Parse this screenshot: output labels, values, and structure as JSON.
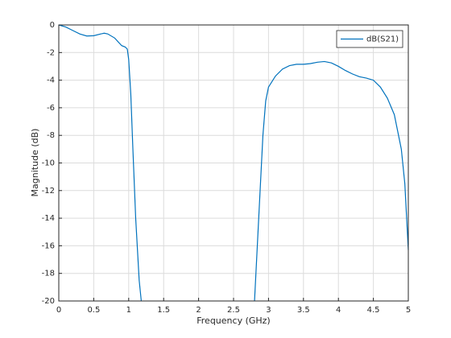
{
  "chart_data": {
    "type": "line",
    "x_label": "Frequency (GHz)",
    "y_label": "Magnitude (dB)",
    "x": [
      0,
      0.1,
      0.2,
      0.3,
      0.4,
      0.5,
      0.6,
      0.65,
      0.7,
      0.8,
      0.9,
      0.95,
      0.98,
      1.0,
      1.03,
      1.06,
      1.1,
      1.15,
      1.18,
      2.0,
      2.8,
      2.84,
      2.88,
      2.92,
      2.96,
      3.0,
      3.1,
      3.2,
      3.3,
      3.4,
      3.5,
      3.6,
      3.7,
      3.8,
      3.9,
      4.0,
      4.1,
      4.2,
      4.3,
      4.4,
      4.5,
      4.6,
      4.7,
      4.8,
      4.9,
      4.95,
      5.0
    ],
    "series": [
      {
        "name": "dB(S21)",
        "color": "#0072bd",
        "values": [
          0,
          -0.15,
          -0.4,
          -0.65,
          -0.8,
          -0.78,
          -0.65,
          -0.6,
          -0.65,
          -0.95,
          -1.5,
          -1.6,
          -1.75,
          -2.5,
          -5,
          -9,
          -14,
          -18.5,
          -20,
          null,
          -20,
          -16,
          -12,
          -8,
          -5.5,
          -4.5,
          -3.7,
          -3.2,
          -2.95,
          -2.85,
          -2.85,
          -2.8,
          -2.7,
          -2.65,
          -2.75,
          -3.0,
          -3.3,
          -3.55,
          -3.75,
          -3.85,
          -4.0,
          -4.5,
          -5.3,
          -6.5,
          -9,
          -11.5,
          -16.3
        ]
      }
    ],
    "xlim": [
      0,
      5
    ],
    "xticks": [
      0,
      0.5,
      1,
      1.5,
      2,
      2.5,
      3,
      3.5,
      4,
      4.5,
      5
    ],
    "ylim": [
      -20,
      0
    ],
    "yticks": [
      -20,
      -18,
      -16,
      -14,
      -12,
      -10,
      -8,
      -6,
      -4,
      -2,
      0
    ],
    "grid": true,
    "legend": "top-right"
  }
}
